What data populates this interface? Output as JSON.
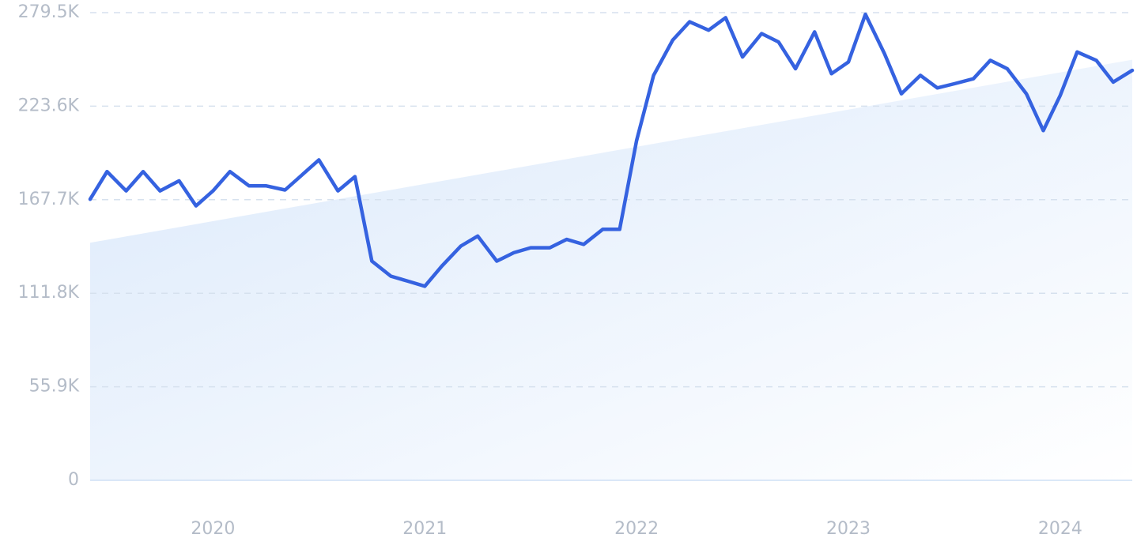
{
  "chart_data": {
    "type": "line",
    "title": "",
    "xlabel": "",
    "ylabel": "",
    "ylim": [
      0,
      279500
    ],
    "y_ticks": [
      {
        "value": 0,
        "label": "0"
      },
      {
        "value": 55900,
        "label": "55.9K"
      },
      {
        "value": 111800,
        "label": "111.8K"
      },
      {
        "value": 167700,
        "label": "167.7K"
      },
      {
        "value": 223600,
        "label": "223.6K"
      },
      {
        "value": 279500,
        "label": "279.5K"
      }
    ],
    "x_ticks": [
      {
        "value": 2020.0,
        "label": "2020"
      },
      {
        "value": 2021.0,
        "label": "2021"
      },
      {
        "value": 2022.0,
        "label": "2022"
      },
      {
        "value": 2023.0,
        "label": "2023"
      },
      {
        "value": 2024.0,
        "label": "2024"
      }
    ],
    "xlim": [
      2019.42,
      2024.34
    ],
    "grid": true,
    "legend": "none",
    "colors": {
      "line": "#3562e0",
      "trend_fill": "#dbe9fb",
      "grid": "#d6e1ee",
      "tick_text": "#b4bcc8"
    },
    "trend": {
      "x": [
        2019.42,
        2023.38
      ],
      "y": [
        142000,
        230000
      ]
    },
    "series": [
      {
        "x": [
          2019.42,
          2019.5,
          2019.59,
          2019.67,
          2019.75,
          2019.84,
          2019.92,
          2020.0,
          2020.08,
          2020.17,
          2020.25,
          2020.34,
          2020.42,
          2020.5,
          2020.59,
          2020.67,
          2020.75,
          2020.84,
          2020.92,
          2021.0,
          2021.08,
          2021.17,
          2021.25,
          2021.34,
          2021.42,
          2021.5,
          2021.59,
          2021.67,
          2021.75,
          2021.84,
          2021.92,
          2022.0,
          2022.08,
          2022.17,
          2022.25,
          2022.34,
          2022.42,
          2022.5,
          2022.59,
          2022.67,
          2022.75,
          2022.84,
          2022.92,
          2023.0,
          2023.08,
          2023.17,
          2023.25,
          2023.34,
          2023.42,
          2023.5,
          2023.59,
          2023.67,
          2023.75,
          2023.84,
          2023.92,
          2024.0,
          2024.08,
          2024.17,
          2024.25,
          2024.34
        ],
        "values": [
          168000,
          184500,
          173000,
          184500,
          173000,
          179000,
          164000,
          173000,
          184500,
          176000,
          176000,
          173500,
          182500,
          191500,
          173000,
          181500,
          131000,
          122000,
          119000,
          116000,
          128000,
          140000,
          146000,
          131000,
          136000,
          139000,
          139000,
          144000,
          141000,
          150000,
          150000,
          203000,
          242000,
          263000,
          274000,
          269000,
          276500,
          253000,
          267000,
          262000,
          246000,
          268000,
          243000,
          250000,
          278500,
          255000,
          231000,
          242000,
          234500,
          237000,
          240000,
          251000,
          246000,
          231000,
          209000,
          230000,
          256000,
          251000,
          238000,
          245000
        ]
      }
    ]
  }
}
